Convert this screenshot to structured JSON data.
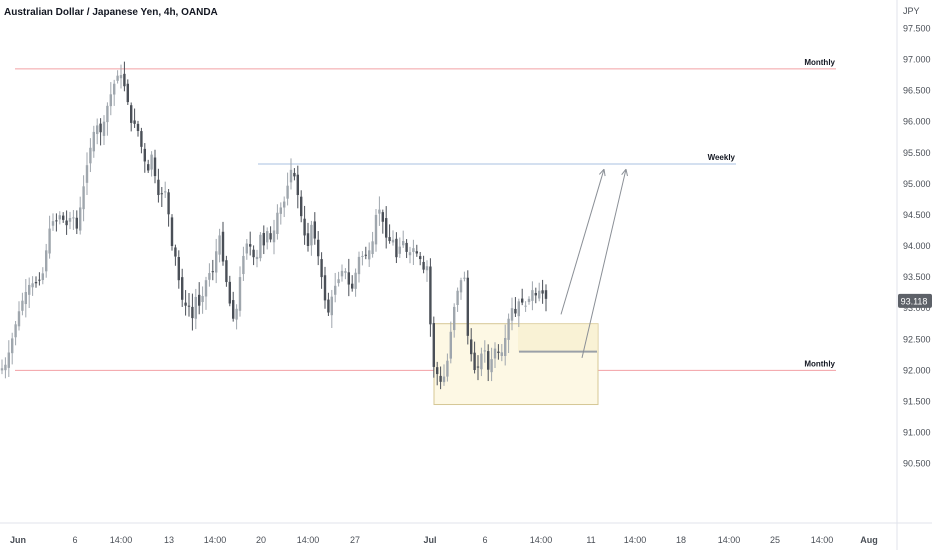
{
  "header": {
    "title": "Australian Dollar / Japanese Yen, 4h, OANDA"
  },
  "colors": {
    "up": "#9fa6ad",
    "down": "#4a4f57",
    "monthly_line": "#f2a1a4",
    "weekly_line": "#a9c2e2",
    "zone_fill": "#fdf8e4",
    "zone_stroke": "#d6c795",
    "arrow": "#8a8f96",
    "price_badge_bg": "#5d6168",
    "price_badge_text": "#ffffff",
    "axis_text": "#4a4f57",
    "axis_line": "#e0e3eb"
  },
  "chart_data": {
    "type": "candlestick",
    "title": "Australian Dollar / Japanese Yen, 4h, OANDA",
    "y_unit": "JPY",
    "ylim": [
      90.0,
      98.0
    ],
    "y_ticks": [
      "90.500",
      "91.000",
      "91.500",
      "92.000",
      "92.500",
      "93.000",
      "93.500",
      "94.000",
      "94.500",
      "95.000",
      "95.500",
      "96.000",
      "96.500",
      "97.000",
      "97.500"
    ],
    "x_ticks": [
      "Jun",
      "6",
      "14:00",
      "13",
      "14:00",
      "20",
      "14:00",
      "27",
      "Jul",
      "6",
      "14:00",
      "11",
      "14:00",
      "18",
      "14:00",
      "25",
      "14:00",
      "Aug",
      "14:00"
    ],
    "current_price": "93.118",
    "levels": [
      {
        "label": "Monthly",
        "price": 96.85,
        "kind": "monthly"
      },
      {
        "label": "Weekly",
        "price": 95.32,
        "kind": "weekly"
      },
      {
        "label": "Monthly",
        "price": 92.0,
        "kind": "monthly"
      }
    ],
    "zone": {
      "price_top": 92.75,
      "price_bottom": 91.45,
      "mid_price": 92.3
    },
    "projection_target": 95.3,
    "close_path": [
      [
        0,
        92.0
      ],
      [
        6,
        92.1
      ],
      [
        12,
        92.5
      ],
      [
        18,
        92.9
      ],
      [
        24,
        93.2
      ],
      [
        30,
        93.4
      ],
      [
        38,
        93.4
      ],
      [
        44,
        93.6
      ],
      [
        48,
        94.2
      ],
      [
        52,
        94.4
      ],
      [
        56,
        94.4
      ],
      [
        60,
        94.5
      ],
      [
        64,
        94.4
      ],
      [
        68,
        94.3
      ],
      [
        72,
        94.6
      ],
      [
        76,
        94.2
      ],
      [
        80,
        94.6
      ],
      [
        84,
        95.0
      ],
      [
        88,
        95.4
      ],
      [
        92,
        95.7
      ],
      [
        96,
        96.0
      ],
      [
        100,
        95.8
      ],
      [
        104,
        96.0
      ],
      [
        108,
        96.3
      ],
      [
        112,
        96.5
      ],
      [
        116,
        96.7
      ],
      [
        120,
        96.8
      ],
      [
        124,
        96.6
      ],
      [
        128,
        96.3
      ],
      [
        132,
        95.9
      ],
      [
        136,
        96.0
      ],
      [
        140,
        95.7
      ],
      [
        144,
        95.4
      ],
      [
        148,
        95.2
      ],
      [
        152,
        95.5
      ],
      [
        156,
        95.0
      ],
      [
        160,
        94.7
      ],
      [
        164,
        95.0
      ],
      [
        168,
        94.6
      ],
      [
        172,
        94.0
      ],
      [
        176,
        93.8
      ],
      [
        180,
        93.3
      ],
      [
        184,
        93.0
      ],
      [
        188,
        93.1
      ],
      [
        192,
        92.8
      ],
      [
        196,
        93.2
      ],
      [
        200,
        93.0
      ],
      [
        204,
        93.3
      ],
      [
        208,
        93.6
      ],
      [
        212,
        93.5
      ],
      [
        216,
        93.9
      ],
      [
        220,
        94.2
      ],
      [
        224,
        93.6
      ],
      [
        228,
        93.3
      ],
      [
        232,
        92.8
      ],
      [
        236,
        92.9
      ],
      [
        240,
        93.5
      ],
      [
        244,
        93.9
      ],
      [
        248,
        94.1
      ],
      [
        252,
        93.9
      ],
      [
        256,
        93.7
      ],
      [
        260,
        94.2
      ],
      [
        264,
        94.0
      ],
      [
        268,
        94.3
      ],
      [
        272,
        94.0
      ],
      [
        276,
        94.5
      ],
      [
        280,
        94.6
      ],
      [
        284,
        94.7
      ],
      [
        288,
        95.0
      ],
      [
        292,
        95.3
      ],
      [
        296,
        95.0
      ],
      [
        300,
        94.6
      ],
      [
        304,
        94.2
      ],
      [
        308,
        94.0
      ],
      [
        312,
        94.4
      ],
      [
        316,
        94.0
      ],
      [
        320,
        93.7
      ],
      [
        324,
        93.2
      ],
      [
        328,
        92.9
      ],
      [
        332,
        93.2
      ],
      [
        336,
        93.4
      ],
      [
        340,
        93.5
      ],
      [
        344,
        93.7
      ],
      [
        348,
        93.4
      ],
      [
        352,
        93.3
      ],
      [
        356,
        93.6
      ],
      [
        360,
        93.9
      ],
      [
        364,
        93.8
      ],
      [
        368,
        93.9
      ],
      [
        372,
        94.0
      ],
      [
        376,
        94.5
      ],
      [
        380,
        94.6
      ],
      [
        384,
        94.3
      ],
      [
        388,
        94.0
      ],
      [
        392,
        94.2
      ],
      [
        396,
        93.8
      ],
      [
        400,
        94.0
      ],
      [
        404,
        94.1
      ],
      [
        408,
        93.8
      ],
      [
        412,
        94.0
      ],
      [
        416,
        93.9
      ],
      [
        420,
        93.8
      ],
      [
        424,
        93.6
      ],
      [
        428,
        93.7
      ],
      [
        432,
        92.1
      ],
      [
        436,
        92.0
      ],
      [
        440,
        91.8
      ],
      [
        444,
        91.9
      ],
      [
        448,
        92.2
      ],
      [
        452,
        92.8
      ],
      [
        456,
        93.2
      ],
      [
        460,
        93.4
      ],
      [
        464,
        93.6
      ],
      [
        468,
        92.5
      ],
      [
        472,
        92.2
      ],
      [
        476,
        91.9
      ],
      [
        480,
        92.2
      ],
      [
        484,
        92.4
      ],
      [
        488,
        92.0
      ],
      [
        492,
        92.2
      ],
      [
        496,
        92.4
      ],
      [
        500,
        92.2
      ],
      [
        504,
        92.4
      ],
      [
        508,
        92.8
      ],
      [
        512,
        93.0
      ],
      [
        516,
        92.9
      ],
      [
        520,
        93.2
      ],
      [
        524,
        93.0
      ],
      [
        528,
        93.1
      ],
      [
        532,
        93.3
      ],
      [
        536,
        93.2
      ],
      [
        540,
        93.3
      ],
      [
        544,
        93.2
      ],
      [
        548,
        93.1
      ]
    ]
  }
}
